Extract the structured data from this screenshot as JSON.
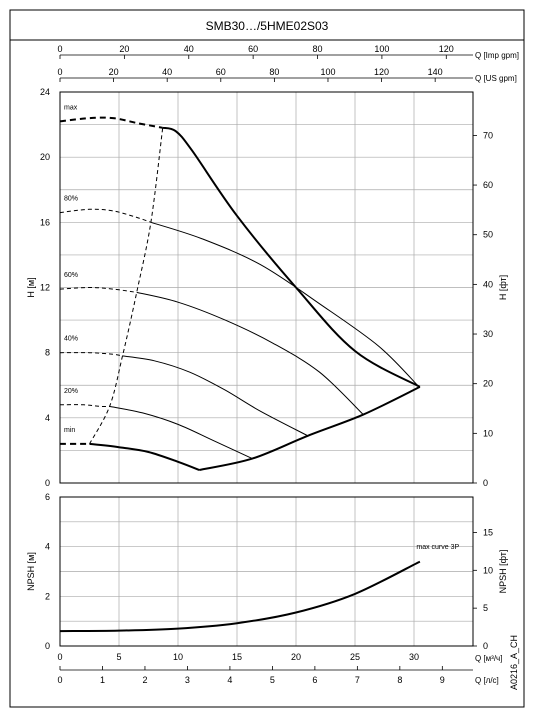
{
  "title": "SMB30…/5HME02S03",
  "document_code": "A0216_A_CH",
  "chart_data": [
    {
      "type": "line",
      "name": "head",
      "ylabel": "H [м]",
      "ylabel_right": "H [фт]",
      "xlim": [
        0,
        35
      ],
      "ylim": [
        0,
        24
      ],
      "x_ticks_left_m3h": [],
      "y_ticks": [
        0,
        4,
        8,
        12,
        16,
        20,
        24
      ],
      "y_right_ticks": [
        0,
        10,
        20,
        30,
        40,
        50,
        60,
        70
      ],
      "y_right_factor": 3.2808,
      "top_axes": [
        {
          "label": "Q [Imp gpm]",
          "ticks": [
            0,
            20,
            40,
            60,
            80,
            100,
            120
          ],
          "factor": 0.2728
        },
        {
          "label": "Q [US gpm]",
          "ticks": [
            0,
            20,
            40,
            60,
            80,
            100,
            120,
            140
          ],
          "factor": 0.2271
        }
      ],
      "series": [
        {
          "name": "max",
          "style": "thick",
          "dashed_x": [
            [
              0,
              22.2
            ],
            [
              2.5,
              22.4
            ],
            [
              4.5,
              22.4
            ],
            [
              6.5,
              22.1
            ],
            [
              8.7,
              21.8
            ]
          ],
          "solid_x": [
            [
              8.7,
              21.8
            ],
            [
              9.8,
              21.6
            ],
            [
              11.2,
              20.4
            ],
            [
              15,
              16.4
            ],
            [
              20,
              12.0
            ],
            [
              25,
              8.1
            ],
            [
              30.5,
              5.9
            ]
          ]
        },
        {
          "name": "80%",
          "dashed_x": [
            [
              0,
              16.6
            ],
            [
              2.5,
              16.8
            ],
            [
              4.5,
              16.7
            ],
            [
              6.5,
              16.3
            ],
            [
              7.7,
              16.0
            ]
          ],
          "solid_x": [
            [
              7.7,
              16.0
            ],
            [
              12,
              15.0
            ],
            [
              17,
              13.4
            ],
            [
              22,
              11.0
            ],
            [
              27,
              8.4
            ],
            [
              30.3,
              6.0
            ]
          ]
        },
        {
          "name": "60%",
          "dashed_x": [
            [
              0,
              11.9
            ],
            [
              2.5,
              12.0
            ],
            [
              4.5,
              11.9
            ],
            [
              6.5,
              11.7
            ]
          ],
          "solid_x": [
            [
              6.5,
              11.7
            ],
            [
              10,
              11.1
            ],
            [
              14,
              10.0
            ],
            [
              18,
              8.6
            ],
            [
              22,
              6.8
            ],
            [
              25.7,
              4.2
            ]
          ]
        },
        {
          "name": "40%",
          "dashed_x": [
            [
              0,
              8.0
            ],
            [
              2.5,
              8.0
            ],
            [
              4.5,
              7.9
            ],
            [
              5.3,
              7.8
            ]
          ],
          "solid_x": [
            [
              5.3,
              7.8
            ],
            [
              8,
              7.5
            ],
            [
              11,
              6.8
            ],
            [
              14,
              5.7
            ],
            [
              17,
              4.4
            ],
            [
              21,
              2.9
            ]
          ]
        },
        {
          "name": "20%",
          "dashed_x": [
            [
              0,
              4.8
            ],
            [
              2,
              4.8
            ],
            [
              3.5,
              4.7
            ],
            [
              4.2,
              4.7
            ]
          ],
          "solid_x": [
            [
              4.2,
              4.7
            ],
            [
              7,
              4.3
            ],
            [
              10,
              3.6
            ],
            [
              13,
              2.6
            ],
            [
              16.3,
              1.5
            ]
          ]
        },
        {
          "name": "min",
          "style": "thick",
          "dashed_x": [
            [
              0,
              2.4
            ],
            [
              1.5,
              2.4
            ],
            [
              2.5,
              2.4
            ]
          ],
          "solid_x": [
            [
              2.5,
              2.4
            ],
            [
              5,
              2.2
            ],
            [
              7.5,
              1.9
            ],
            [
              10,
              1.3
            ],
            [
              11.8,
              0.8
            ]
          ]
        },
        {
          "name": "max",
          "style": "thick",
          "solid_x": [
            [
              11.8,
              0.8
            ],
            [
              16.3,
              1.5
            ],
            [
              21,
              2.9
            ],
            [
              25.7,
              4.2
            ],
            [
              30.5,
              5.9
            ]
          ]
        },
        {
          "name": "max",
          "style": "dashed",
          "dashed_x": [
            [
              2.5,
              2.4
            ],
            [
              4.2,
              4.7
            ],
            [
              5.3,
              7.8
            ],
            [
              6.5,
              11.7
            ],
            [
              7.7,
              16.0
            ],
            [
              8.7,
              21.8
            ]
          ]
        }
      ],
      "curve_labels": [
        "max",
        "80%",
        "60%",
        "40%",
        "20%",
        "min"
      ]
    },
    {
      "type": "line",
      "name": "npsh",
      "ylabel": "NPSH [м]",
      "ylabel_right": "NPSH [фт]",
      "xlim": [
        0,
        35
      ],
      "ylim": [
        0,
        6
      ],
      "y_ticks": [
        0,
        2,
        4,
        6
      ],
      "y_right_ticks": [
        0,
        5,
        10,
        15
      ],
      "y_right_factor": 3.2808,
      "x_ticks": [
        0,
        5,
        10,
        15,
        20,
        25,
        30
      ],
      "xlabel": "Q [м³/ч]",
      "bottom_axis": {
        "label": "Q [л/с]",
        "ticks": [
          0,
          1,
          2,
          3,
          4,
          5,
          6,
          7,
          8,
          9
        ],
        "factor": 3.6
      },
      "series": [
        {
          "name": "max curve 3P",
          "x": [
            0,
            5,
            10,
            15,
            20,
            25,
            30.5
          ],
          "y": [
            0.6,
            0.62,
            0.7,
            0.92,
            1.35,
            2.1,
            3.4
          ]
        }
      ]
    }
  ]
}
